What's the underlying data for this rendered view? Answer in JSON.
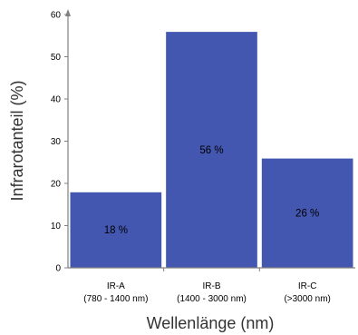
{
  "chart_data": {
    "type": "bar",
    "categories": [
      [
        "IR-A",
        "(780 - 1400 nm)"
      ],
      [
        "IR-B",
        "(1400 - 3000 nm)"
      ],
      [
        "IR-C",
        "(>3000 nm)"
      ]
    ],
    "values": [
      18,
      56,
      26
    ],
    "data_labels": [
      "18 %",
      "56 %",
      "26 %"
    ],
    "ylabel": "Infrarotanteil (%)",
    "xlabel": "Wellenlänge (nm)",
    "ylim": [
      0,
      60
    ],
    "yticks": [
      0,
      10,
      20,
      30,
      40,
      50,
      60
    ],
    "grid": false,
    "legend": "none",
    "bar_color": "#4357b1",
    "bar_edge_color": "#ffffff"
  }
}
